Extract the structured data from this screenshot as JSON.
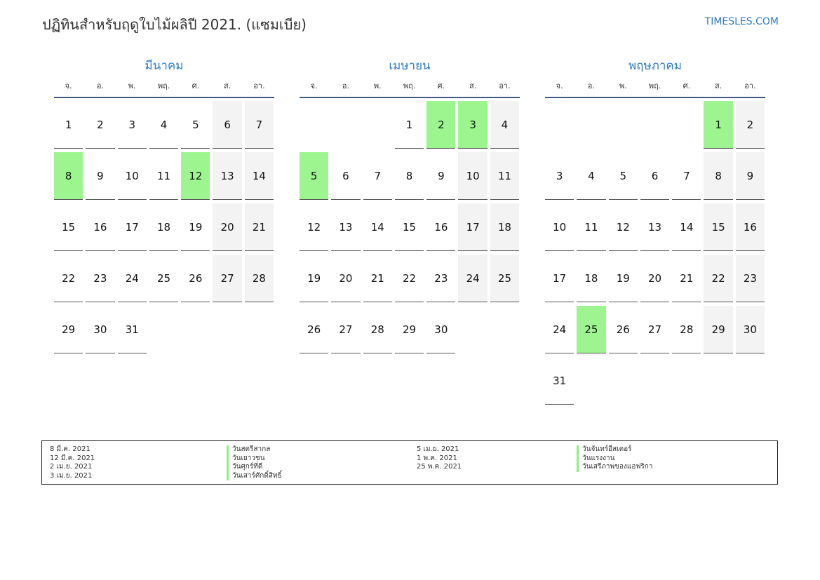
{
  "header": {
    "title": "ปฏิทินสำหรับฤดูใบไม้ผลิปี 2021. (แซมเบีย)",
    "site": "TIMESLES.COM"
  },
  "weekdays": [
    "จ.",
    "อ.",
    "พ.",
    "พฤ.",
    "ศ.",
    "ส.",
    "อา."
  ],
  "colors": {
    "accent": "#2e7bc4",
    "holiday": "#9cf58f",
    "weekend": "#f3f3f3"
  },
  "months": [
    {
      "name": "มีนาคม",
      "start_offset": 0,
      "days_in_month": 31,
      "holidays": [
        8,
        12
      ]
    },
    {
      "name": "เมษายน",
      "start_offset": 3,
      "days_in_month": 30,
      "holidays": [
        2,
        3,
        5
      ]
    },
    {
      "name": "พฤษภาคม",
      "start_offset": 5,
      "days_in_month": 31,
      "holidays": [
        1,
        25
      ]
    }
  ],
  "legend": {
    "left": [
      {
        "date": "8 มี.ค. 2021",
        "name": "วันสตรีสากล"
      },
      {
        "date": "12 มี.ค. 2021",
        "name": "วันเยาวชน"
      },
      {
        "date": "2 เม.ย. 2021",
        "name": "วันศุกร์ที่ดี"
      },
      {
        "date": "3 เม.ย. 2021",
        "name": "วันเสาร์ศักดิ์สิทธิ์"
      }
    ],
    "right": [
      {
        "date": "5 เม.ย. 2021",
        "name": "วันจันทร์อีสเตอร์"
      },
      {
        "date": "1 พ.ค. 2021",
        "name": "วันแรงงาน"
      },
      {
        "date": "25 พ.ค. 2021",
        "name": "วันเสรีภาพของแอฟริกา"
      }
    ]
  }
}
